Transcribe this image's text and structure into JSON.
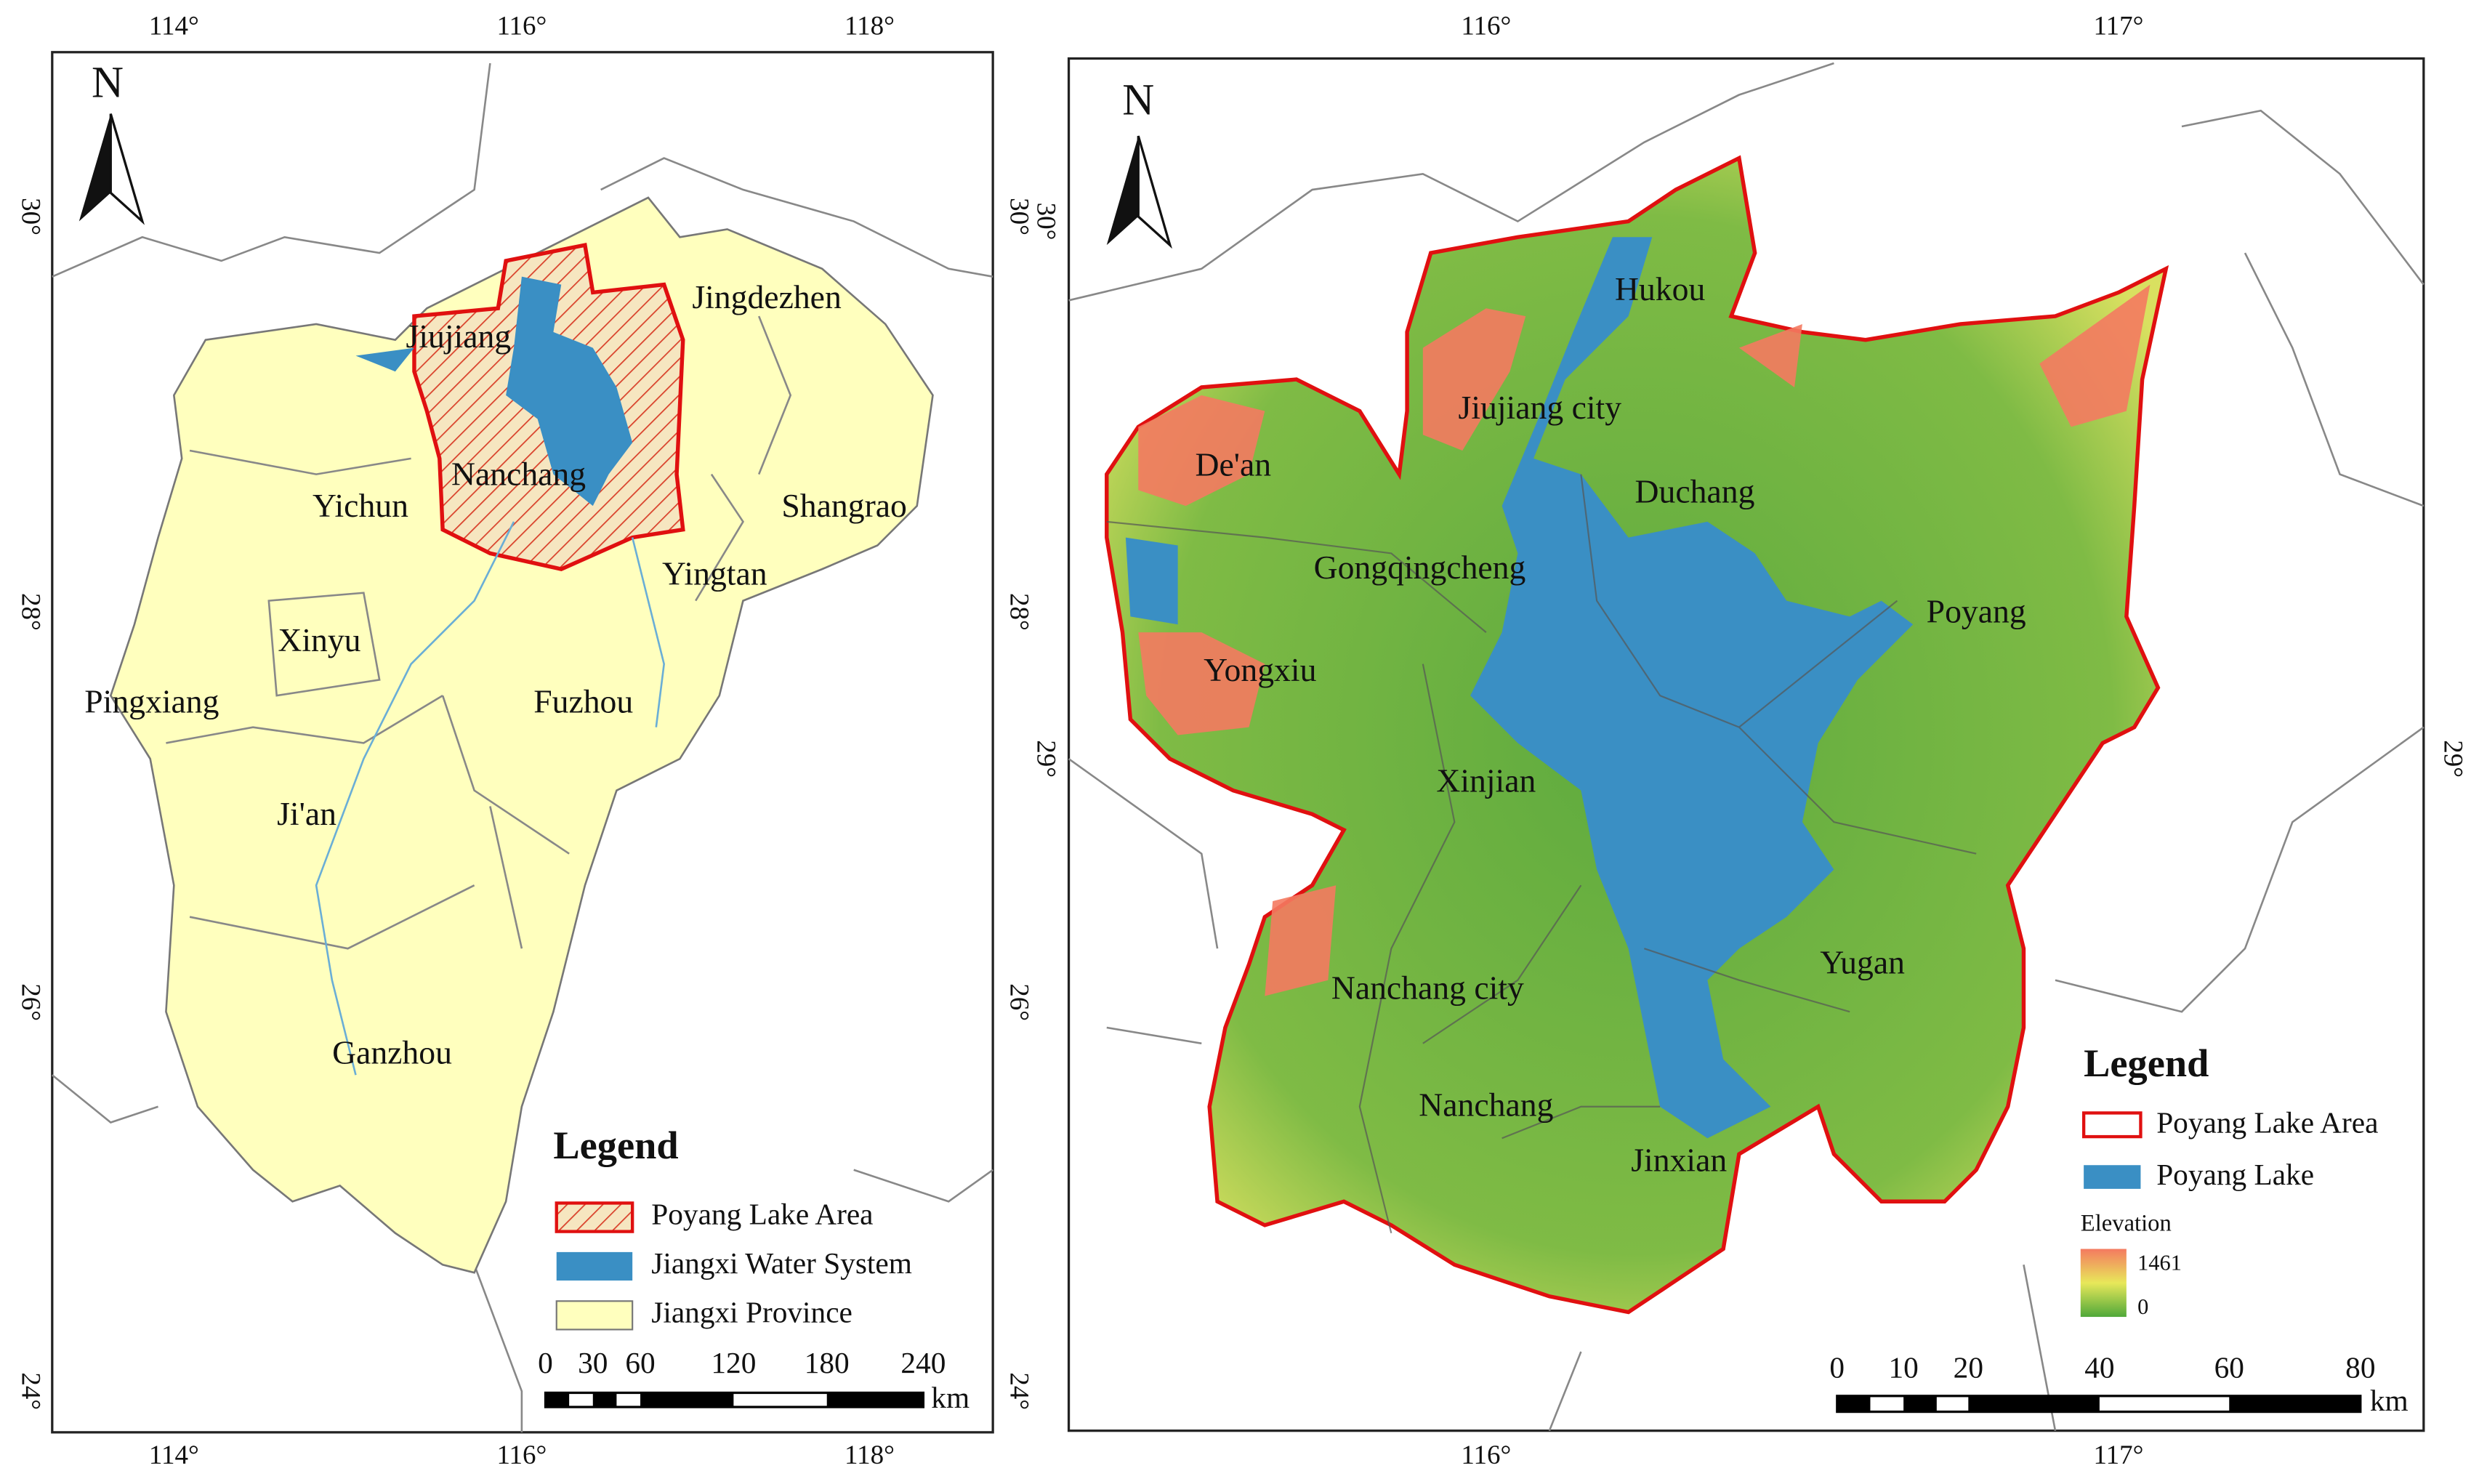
{
  "left_map": {
    "north": "N",
    "lon_labels": [
      "114°",
      "116°",
      "118°"
    ],
    "lat_labels": [
      "30°",
      "28°",
      "26°",
      "24°"
    ],
    "places": [
      "Jiujiang",
      "Jingdezhen",
      "Nanchang",
      "Yichun",
      "Shangrao",
      "Yingtan",
      "Xinyu",
      "Pingxiang",
      "Fuzhou",
      "Ji'an",
      "Ganzhou"
    ],
    "legend": {
      "title": "Legend",
      "items": [
        "Poyang Lake  Area",
        "Jiangxi Water System",
        "Jiangxi Province"
      ]
    },
    "scale": {
      "ticks": [
        "0",
        "30",
        "60",
        "120",
        "180",
        "240"
      ],
      "unit": "km"
    }
  },
  "right_map": {
    "north": "N",
    "lon_labels": [
      "116°",
      "117°"
    ],
    "lat_labels": [
      "30°",
      "29°"
    ],
    "places": [
      "Hukou",
      "Jiujiang city",
      "De'an",
      "Duchang",
      "Gongqingcheng",
      "Poyang",
      "Yongxiu",
      "Xinjian",
      "Yugan",
      "Nanchang city",
      "Nanchang",
      "Jinxian"
    ],
    "legend": {
      "title": "Legend",
      "items": [
        "Poyang Lake Area",
        "Poyang Lake"
      ],
      "elevation_title": "Elevation",
      "elevation_max": "1461",
      "elevation_min": "0"
    },
    "scale": {
      "ticks": [
        "0",
        "10",
        "20",
        "40",
        "60",
        "80"
      ],
      "unit": "km"
    }
  }
}
